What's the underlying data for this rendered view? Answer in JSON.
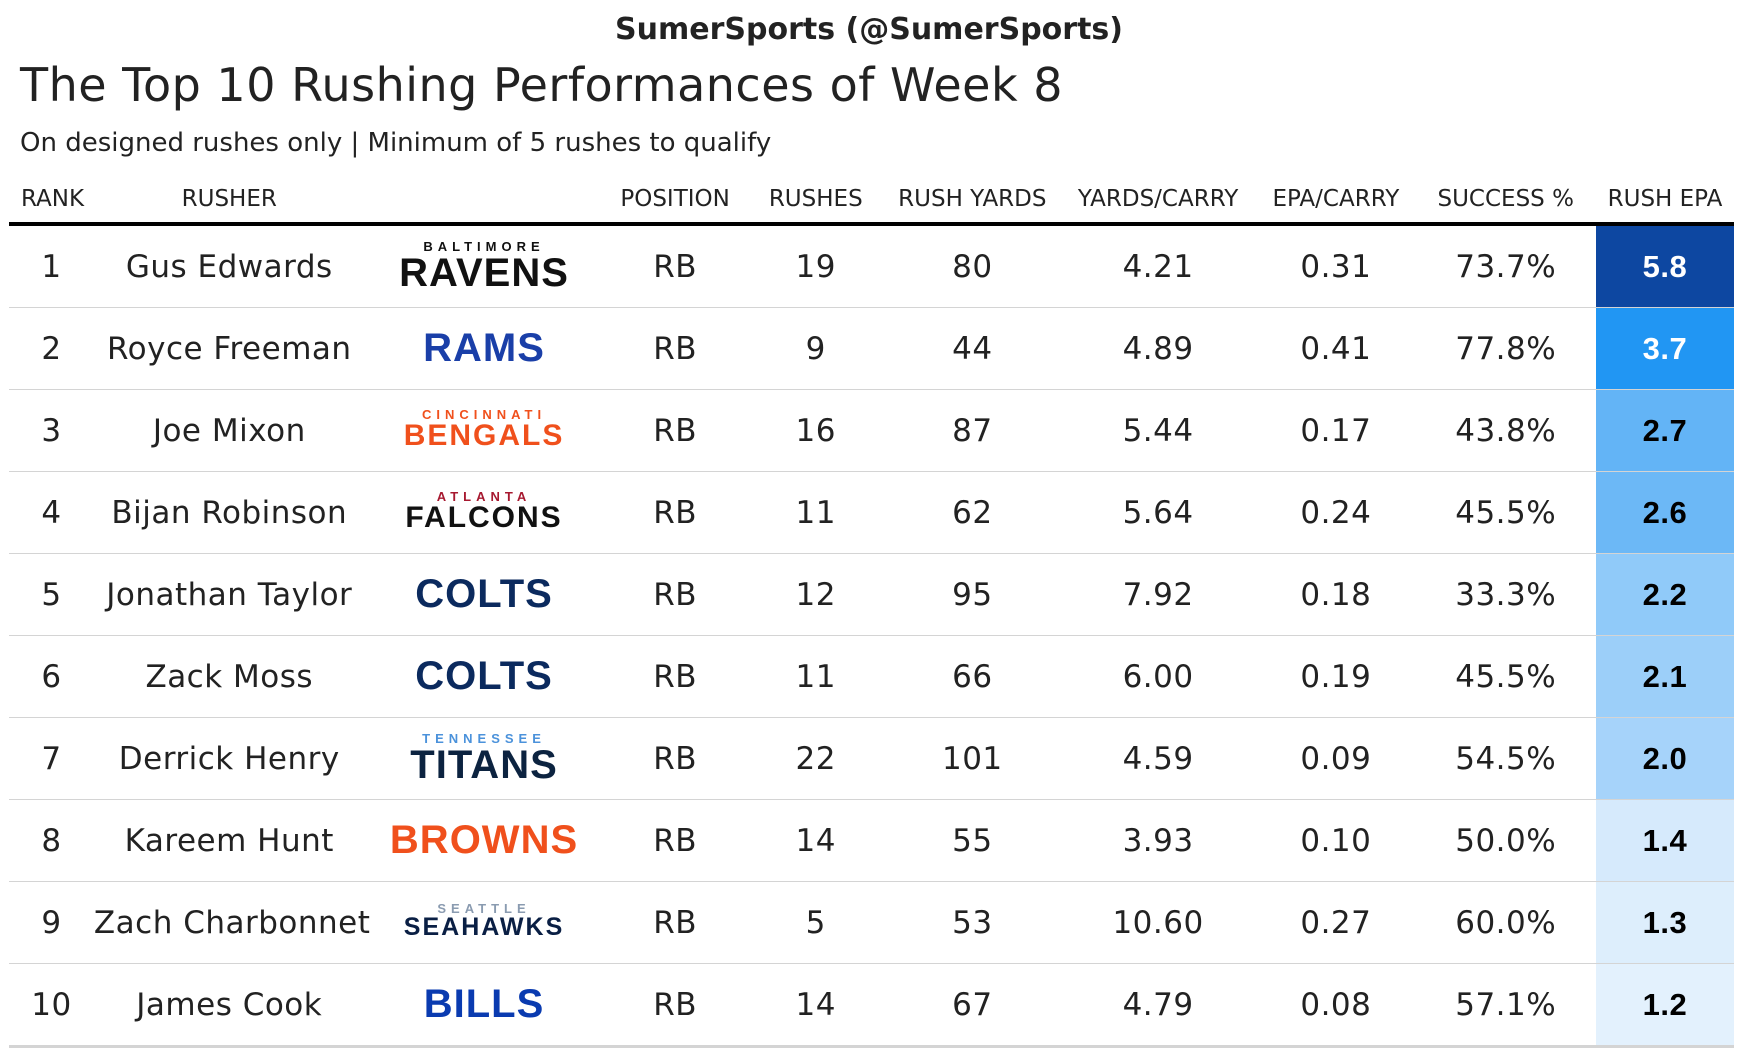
{
  "header": {
    "credit": "SumerSports (@SumerSports)",
    "title": "The Top 10 Rushing Performances of Week 8",
    "subtitle": "On designed rushes only | Minimum of 5 rushes to qualify"
  },
  "columns": [
    "RANK",
    "RUSHER",
    "",
    "POSITION",
    "RUSHES",
    "RUSH YARDS",
    "YARDS/CARRY",
    "EPA/CARRY",
    "SUCCESS %",
    "RUSH EPA"
  ],
  "rows": [
    {
      "rank": "1",
      "rusher": "Gus Edwards",
      "logo": {
        "small": "BALTIMORE",
        "big": "RAVENS",
        "color": "#111111",
        "accent": "#111111"
      },
      "position": "RB",
      "rushes": "19",
      "rush_yards": "80",
      "yards_carry": "4.21",
      "epa_carry": "0.31",
      "success": "73.7%",
      "rush_epa": "5.8",
      "epa_bg": "#0d47a1",
      "epa_fg": "#ffffff"
    },
    {
      "rank": "2",
      "rusher": "Royce Freeman",
      "logo": {
        "small": "",
        "big": "RAMS",
        "color": "#1a3fa8",
        "accent": "#1a3fa8"
      },
      "position": "RB",
      "rushes": "9",
      "rush_yards": "44",
      "yards_carry": "4.89",
      "epa_carry": "0.41",
      "success": "77.8%",
      "rush_epa": "3.7",
      "epa_bg": "#2196f3",
      "epa_fg": "#ffffff"
    },
    {
      "rank": "3",
      "rusher": "Joe Mixon",
      "logo": {
        "small": "CINCINNATI",
        "big": "BENGALS",
        "color": "#f0501c",
        "accent": "#f0501c"
      },
      "position": "RB",
      "rushes": "16",
      "rush_yards": "87",
      "yards_carry": "5.44",
      "epa_carry": "0.17",
      "success": "43.8%",
      "rush_epa": "2.7",
      "epa_bg": "#63b4f6",
      "epa_fg": "#000000"
    },
    {
      "rank": "4",
      "rusher": "Bijan Robinson",
      "logo": {
        "small": "ATLANTA",
        "big": "FALCONS",
        "color": "#111111",
        "accent": "#a71930"
      },
      "position": "RB",
      "rushes": "11",
      "rush_yards": "62",
      "yards_carry": "5.64",
      "epa_carry": "0.24",
      "success": "45.5%",
      "rush_epa": "2.6",
      "epa_bg": "#6cb8f6",
      "epa_fg": "#000000"
    },
    {
      "rank": "5",
      "rusher": "Jonathan Taylor",
      "logo": {
        "small": "",
        "big": "COLTS",
        "color": "#0b2a5e",
        "accent": "#0b2a5e"
      },
      "position": "RB",
      "rushes": "12",
      "rush_yards": "95",
      "yards_carry": "7.92",
      "epa_carry": "0.18",
      "success": "33.3%",
      "rush_epa": "2.2",
      "epa_bg": "#90caf9",
      "epa_fg": "#000000"
    },
    {
      "rank": "6",
      "rusher": "Zack Moss",
      "logo": {
        "small": "",
        "big": "COLTS",
        "color": "#0b2a5e",
        "accent": "#0b2a5e"
      },
      "position": "RB",
      "rushes": "11",
      "rush_yards": "66",
      "yards_carry": "6.00",
      "epa_carry": "0.19",
      "success": "45.5%",
      "rush_epa": "2.1",
      "epa_bg": "#9ccff9",
      "epa_fg": "#000000"
    },
    {
      "rank": "7",
      "rusher": "Derrick Henry",
      "logo": {
        "small": "TENNESSEE",
        "big": "TITANS",
        "color": "#0c2340",
        "accent": "#4b92db"
      },
      "position": "RB",
      "rushes": "22",
      "rush_yards": "101",
      "yards_carry": "4.59",
      "epa_carry": "0.09",
      "success": "54.5%",
      "rush_epa": "2.0",
      "epa_bg": "#a6d3fa",
      "epa_fg": "#000000"
    },
    {
      "rank": "8",
      "rusher": "Kareem Hunt",
      "logo": {
        "small": "",
        "big": "BROWNS",
        "color": "#f0501c",
        "accent": "#f0501c"
      },
      "position": "RB",
      "rushes": "14",
      "rush_yards": "55",
      "yards_carry": "3.93",
      "epa_carry": "0.10",
      "success": "50.0%",
      "rush_epa": "1.4",
      "epa_bg": "#d6eafc",
      "epa_fg": "#000000"
    },
    {
      "rank": "9",
      "rusher": "Zach Charbonnet",
      "logo": {
        "small": "SEATTLE",
        "big": "SEAHAWKS",
        "color": "#0a1f44",
        "accent": "#8a9bb0"
      },
      "position": "RB",
      "rushes": "5",
      "rush_yards": "53",
      "yards_carry": "10.60",
      "epa_carry": "0.27",
      "success": "60.0%",
      "rush_epa": "1.3",
      "epa_bg": "#ddeefc",
      "epa_fg": "#000000"
    },
    {
      "rank": "10",
      "rusher": "James Cook",
      "logo": {
        "small": "",
        "big": "BILLS",
        "color": "#0a3bb0",
        "accent": "#0a3bb0"
      },
      "position": "RB",
      "rushes": "14",
      "rush_yards": "67",
      "yards_carry": "4.79",
      "epa_carry": "0.08",
      "success": "57.1%",
      "rush_epa": "1.2",
      "epa_bg": "#e3f1fd",
      "epa_fg": "#000000"
    }
  ]
}
